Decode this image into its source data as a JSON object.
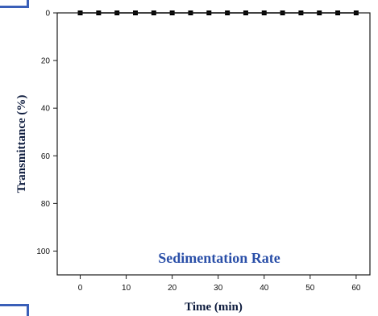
{
  "chart_data": {
    "type": "line",
    "xlabel": "Time (min)",
    "ylabel": "Transmittance (%)",
    "annotation": "Sedimentation Rate",
    "xlim": [
      -5,
      63
    ],
    "ylim": [
      0,
      110
    ],
    "y_inverted": true,
    "x_ticks": [
      0,
      10,
      20,
      30,
      40,
      50,
      60
    ],
    "y_ticks": [
      0,
      20,
      40,
      60,
      80,
      100
    ],
    "grid": false,
    "series": [
      {
        "x": [
          0,
          4,
          8,
          12,
          16,
          20,
          24,
          28,
          32,
          36,
          40,
          44,
          48,
          52,
          56,
          60
        ],
        "values": [
          0,
          0,
          0,
          0,
          0,
          0,
          0,
          0,
          0,
          0,
          0,
          0,
          0,
          0,
          0,
          0
        ],
        "color": "#000000",
        "marker": "square"
      }
    ],
    "colors": {
      "axis": "#1a1a1a",
      "annotation": "#2a4fa8",
      "accent": "#3a5fb8"
    }
  }
}
